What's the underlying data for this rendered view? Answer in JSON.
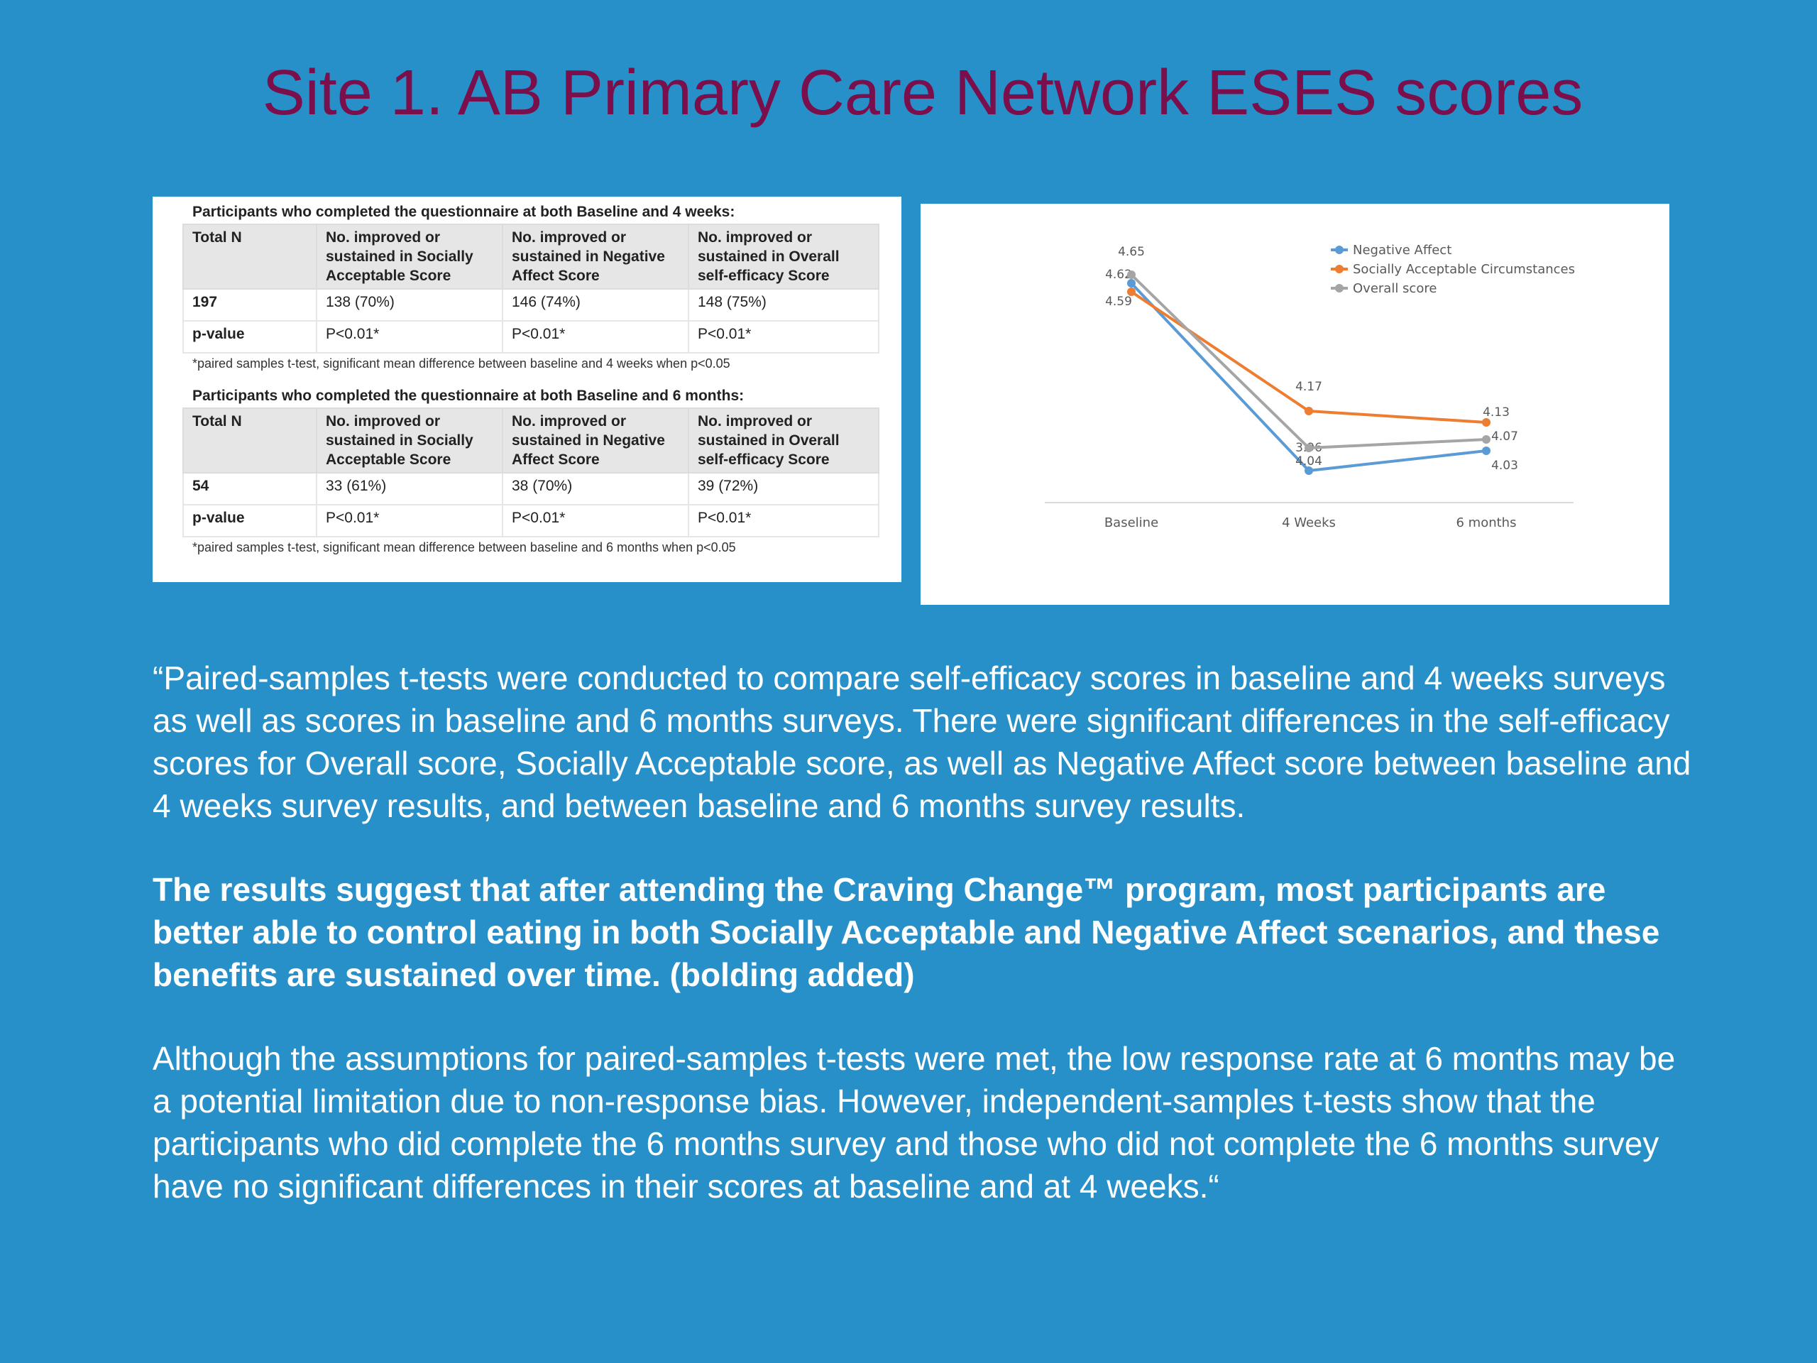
{
  "title": "Site 1.  AB Primary Care Network ESES scores",
  "tables": [
    {
      "heading": "Participants who completed the questionnaire at both Baseline and 4 weeks:",
      "columns": [
        "Total N",
        "No. improved or sustained in Socially Acceptable Score",
        "No. improved or sustained in Negative Affect Score",
        "No. improved or sustained in Overall self-efficacy Score"
      ],
      "rows": [
        [
          "197",
          "138 (70%)",
          "146 (74%)",
          "148 (75%)"
        ],
        [
          "p-value",
          "P<0.01*",
          "P<0.01*",
          "P<0.01*"
        ]
      ],
      "footnote": "*paired samples t-test, significant mean difference between baseline and 4 weeks when p<0.05"
    },
    {
      "heading": "Participants who completed the questionnaire at both Baseline and 6 months:",
      "columns": [
        "Total N",
        "No. improved or sustained in Socially Acceptable Score",
        "No. improved or sustained in Negative Affect Score",
        "No. improved or sustained in Overall self-efficacy Score"
      ],
      "rows": [
        [
          "54",
          "33 (61%)",
          "38 (70%)",
          "39 (72%)"
        ],
        [
          "p-value",
          "P<0.01*",
          "P<0.01*",
          "P<0.01*"
        ]
      ],
      "footnote": "*paired samples t-test, significant mean difference between baseline and 6 months when p<0.05"
    }
  ],
  "chart_data": {
    "type": "line",
    "categories": [
      "Baseline",
      "4 Weeks",
      "6 months"
    ],
    "ylim": [
      3.85,
      4.75
    ],
    "grid": false,
    "legend_position": "top-right",
    "series": [
      {
        "name": "Negative Affect",
        "color": "#5b9bd5",
        "values": [
          4.62,
          3.96,
          4.03
        ]
      },
      {
        "name": "Socially Acceptable Circumstances",
        "color": "#ed7d31",
        "values": [
          4.59,
          4.17,
          4.13
        ]
      },
      {
        "name": "Overall score",
        "color": "#a5a5a5",
        "values": [
          4.65,
          4.04,
          4.07
        ]
      }
    ]
  },
  "paragraphs": {
    "p1": "“Paired-samples t-tests were conducted to compare self-efficacy scores in baseline and 4 weeks surveys as well as scores in baseline and 6 months surveys. There were significant differences in the self-efficacy scores for Overall score, Socially Acceptable score, as well as Negative Affect score between baseline and 4 weeks survey results, and between baseline and 6 months survey results.",
    "p2": "The results suggest that after attending the Craving Change™ program, most participants are better able to control eating in both Socially Acceptable and Negative Affect scenarios, and these benefits are sustained over time. (bolding added)",
    "p3": "Although the assumptions for paired-samples t-tests were met, the low response rate at 6 months may be a potential limitation due to non-response bias. However, independent-samples t-tests show that the participants who did complete the 6 months survey and those who did not complete the 6 months survey have no significant differences in their scores at baseline and at 4 weeks.“"
  }
}
